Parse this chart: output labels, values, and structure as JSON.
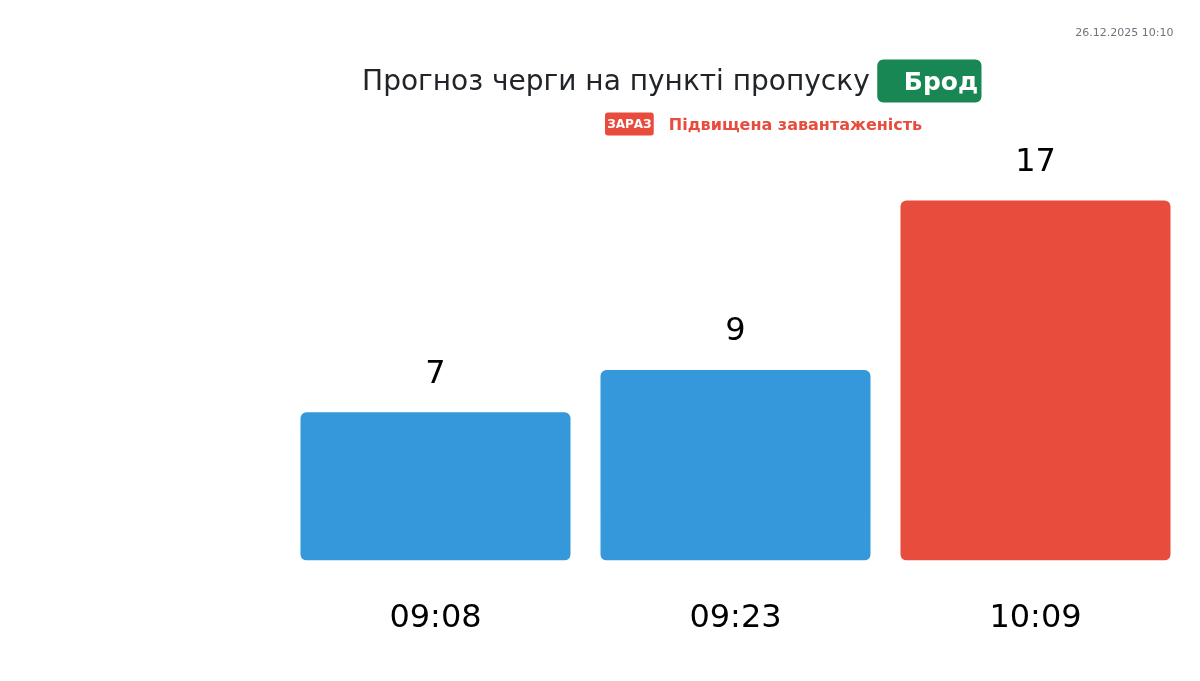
{
  "chart_data": {
    "type": "bar",
    "title": "Прогноз черги на пункті пропуску",
    "subtitle": "Підвищена завантаженість",
    "annotations": [
      "Брод",
      "ЗАРАЗ",
      "26.12.2025 10:10"
    ],
    "categories": [
      "09:08",
      "09:23",
      "10:09"
    ],
    "values": [
      7,
      9,
      17
    ],
    "colors": [
      "#3498db",
      "#3498db",
      "#e74c3c"
    ],
    "data_labels": true
  }
}
